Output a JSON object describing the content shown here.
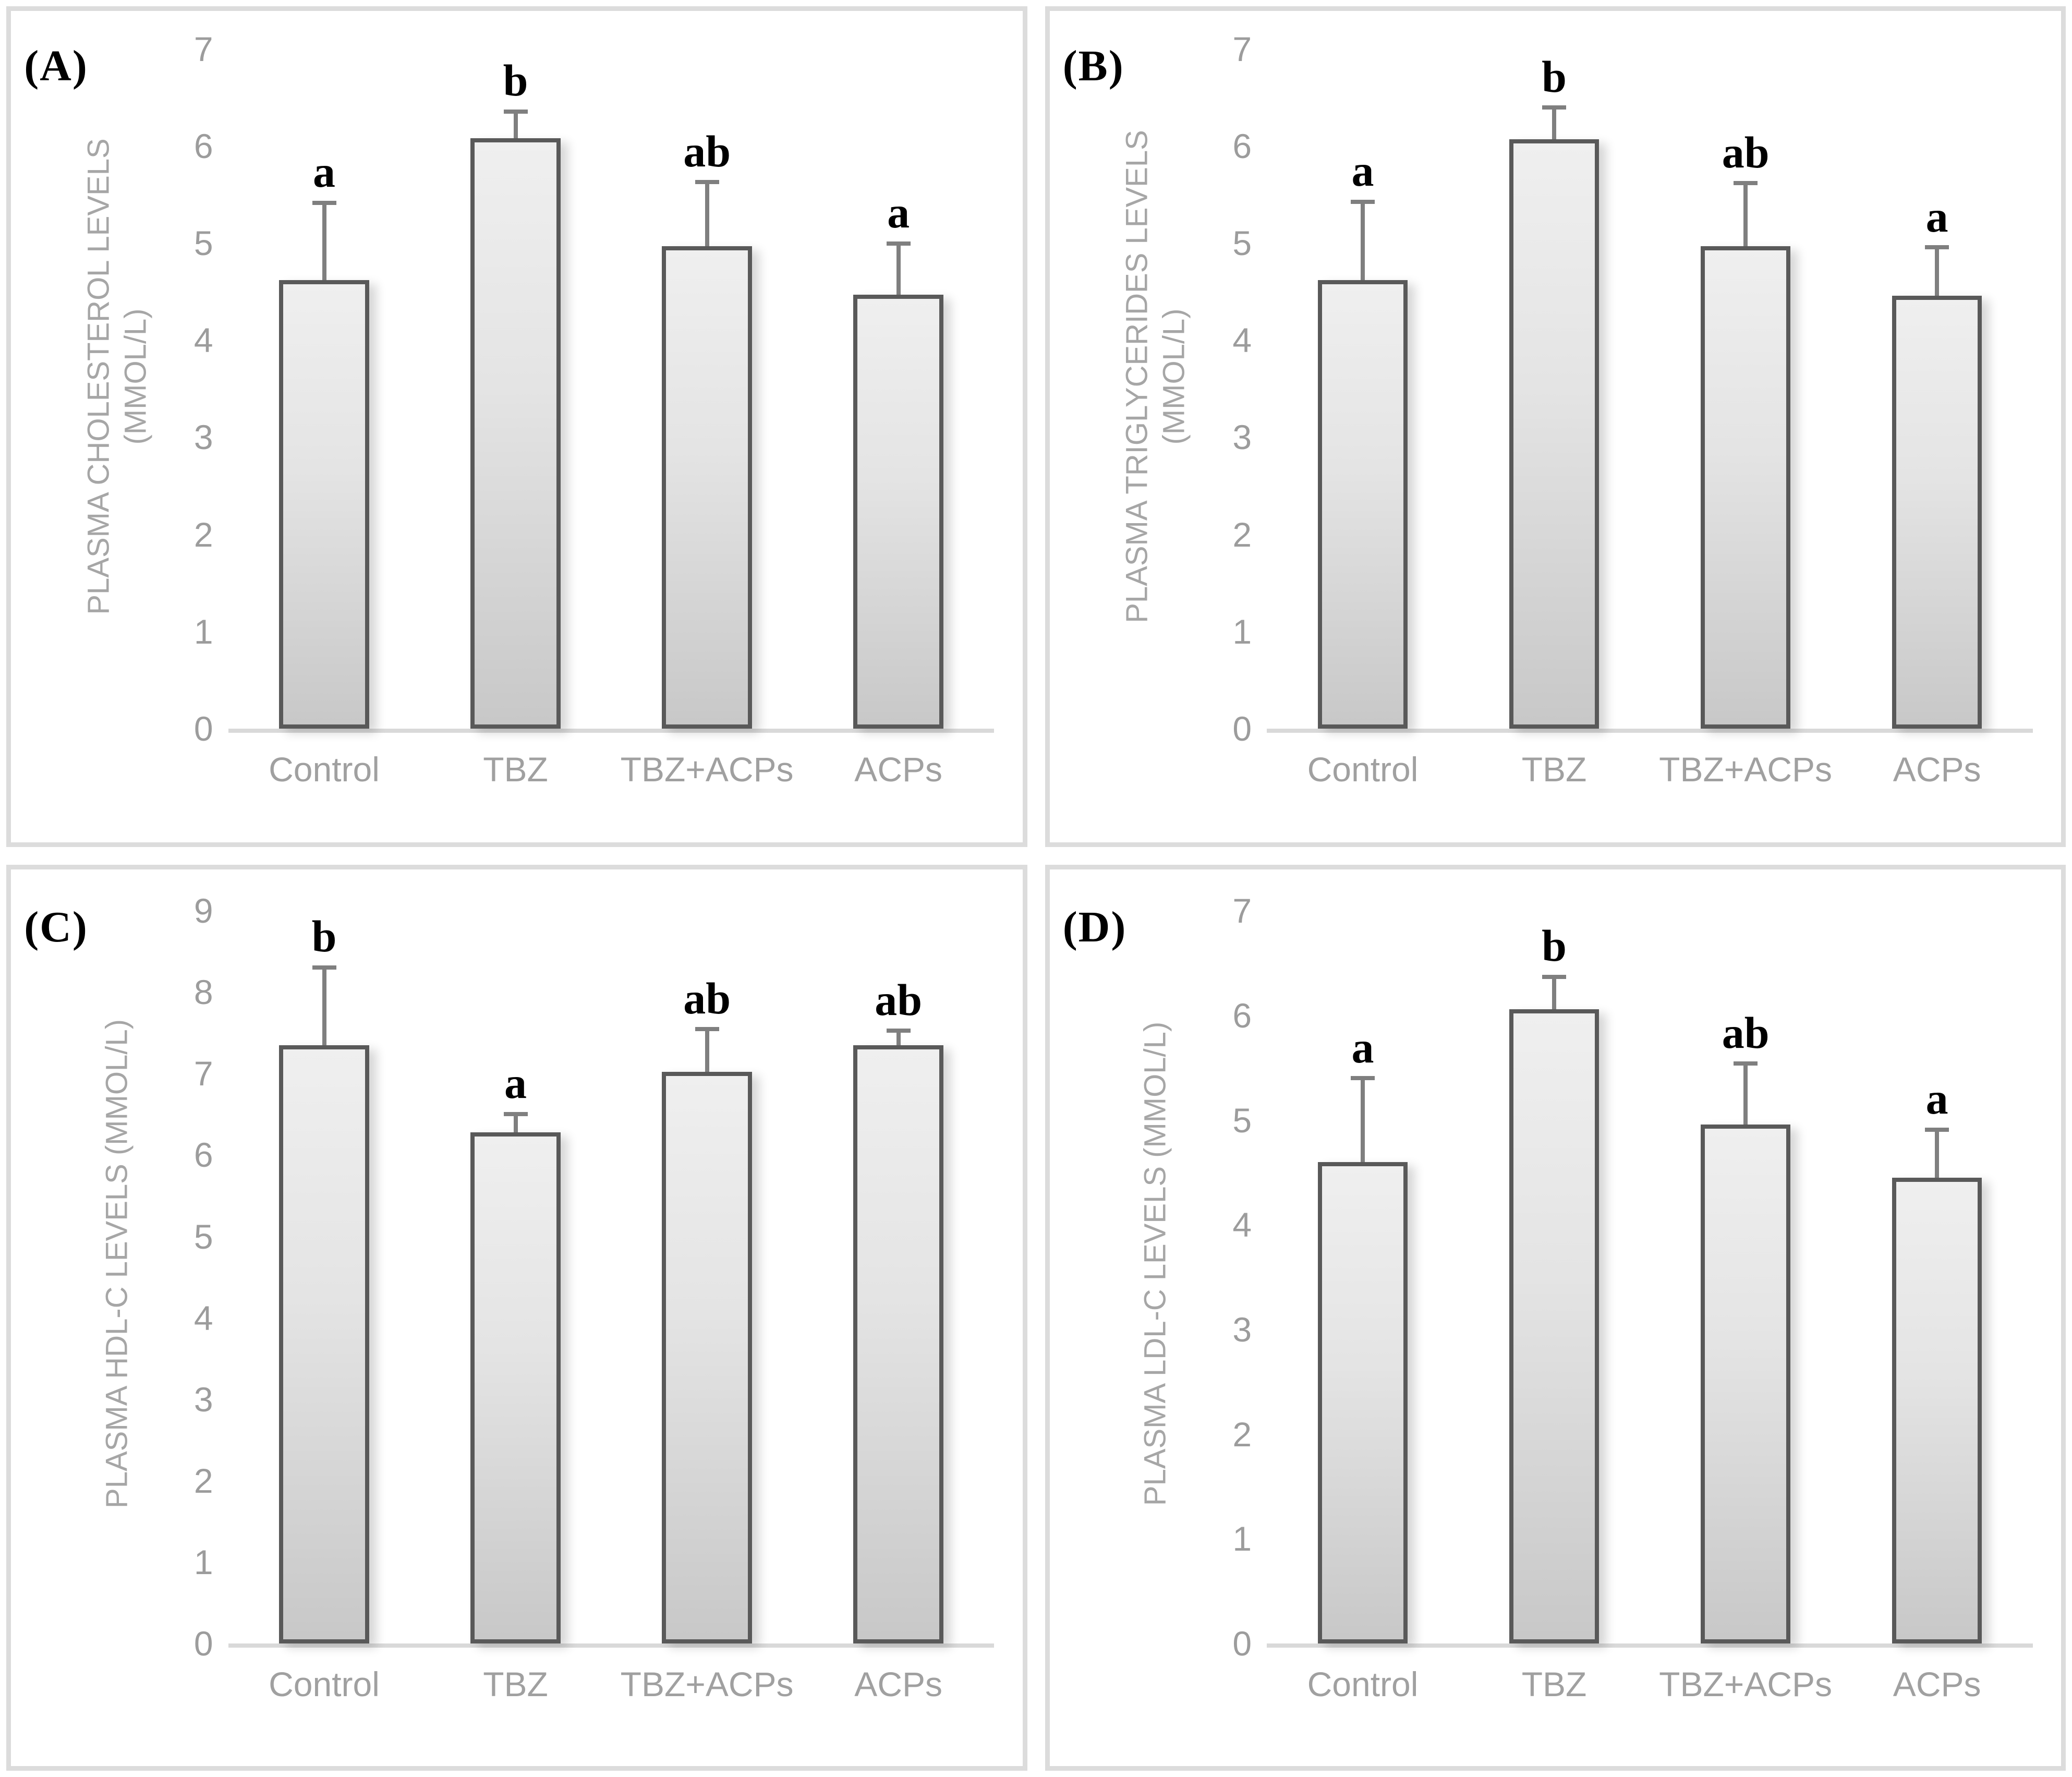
{
  "figure": {
    "background": "#ffffff",
    "panel_border_color": "#dcdcdc",
    "axis_line_color": "#d9d9d9",
    "bar_border_color": "#595959",
    "bar_fill_top": "#efefef",
    "bar_fill_bottom": "#c8c8c8",
    "error_bar_color": "#7f7f7f",
    "tick_text_color": "#9c9c9c",
    "category_text_color": "#a0a0a0",
    "ylabel_text_color": "#a6a6a6",
    "significance_text_color": "#000000"
  },
  "chart_data": [
    {
      "type": "bar",
      "panel_label": "(A)",
      "ylabel_lines": [
        "PLASMA CHOLESTEROL LEVELS",
        "(MMOL/L)"
      ],
      "ylim": [
        0,
        7
      ],
      "yticks": [
        0,
        1,
        2,
        3,
        4,
        5,
        6,
        7
      ],
      "categories": [
        "Control",
        "TBZ",
        "TBZ+ACPs",
        "ACPs"
      ],
      "values": [
        4.62,
        6.08,
        4.97,
        4.47
      ],
      "errors_plus": [
        0.82,
        0.3,
        0.68,
        0.55
      ],
      "sig_letters": [
        "a",
        "b",
        "ab",
        "a"
      ],
      "grid": false,
      "legend": null
    },
    {
      "type": "bar",
      "panel_label": "(B)",
      "ylabel_lines": [
        "PLASMA TRIGLYCERIDES LEVELS",
        "(MMOL/L)"
      ],
      "ylim": [
        0,
        7
      ],
      "yticks": [
        0,
        1,
        2,
        3,
        4,
        5,
        6,
        7
      ],
      "categories": [
        "Control",
        "TBZ",
        "TBZ+ACPs",
        "ACPs"
      ],
      "values": [
        4.62,
        6.07,
        4.97,
        4.46
      ],
      "errors_plus": [
        0.83,
        0.35,
        0.67,
        0.52
      ],
      "sig_letters": [
        "a",
        "b",
        "ab",
        "a"
      ],
      "grid": false,
      "legend": null
    },
    {
      "type": "bar",
      "panel_label": "(C)",
      "ylabel_lines": [
        "PLASMA HDL-C LEVELS (MMOL/L)"
      ],
      "ylim": [
        0,
        9
      ],
      "yticks": [
        0,
        1,
        2,
        3,
        4,
        5,
        6,
        7,
        8,
        9
      ],
      "categories": [
        "Control",
        "TBZ",
        "TBZ+ACPs",
        "ACPs"
      ],
      "values": [
        7.35,
        6.28,
        7.02,
        7.35
      ],
      "errors_plus": [
        0.98,
        0.25,
        0.55,
        0.2
      ],
      "sig_letters": [
        "b",
        "a",
        "ab",
        "ab"
      ],
      "grid": false,
      "legend": null
    },
    {
      "type": "bar",
      "panel_label": "(D)",
      "ylabel_lines": [
        "PLASMA LDL-C LEVELS (MMOL/L)"
      ],
      "ylim": [
        0,
        7
      ],
      "yticks": [
        0,
        1,
        2,
        3,
        4,
        5,
        6,
        7
      ],
      "categories": [
        "Control",
        "TBZ",
        "TBZ+ACPs",
        "ACPs"
      ],
      "values": [
        4.6,
        6.06,
        4.96,
        4.45
      ],
      "errors_plus": [
        0.82,
        0.33,
        0.6,
        0.48
      ],
      "sig_letters": [
        "a",
        "b",
        "ab",
        "a"
      ],
      "grid": false,
      "legend": null
    }
  ]
}
